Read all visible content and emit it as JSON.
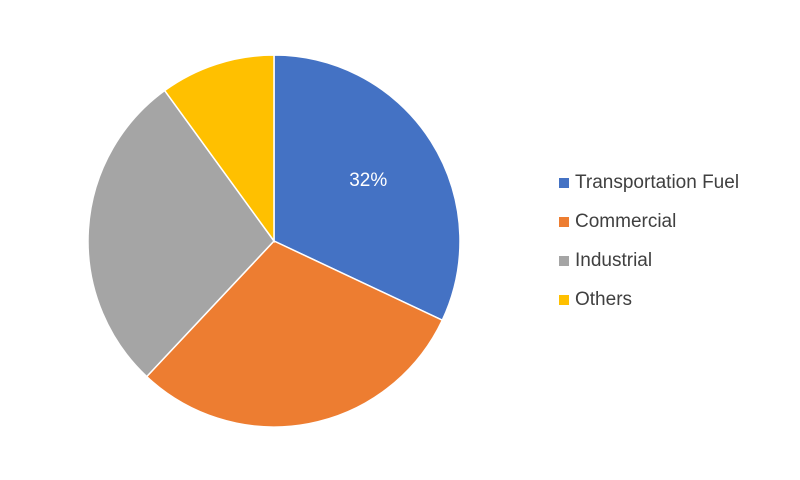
{
  "chart_data": {
    "type": "pie",
    "categories": [
      "Transportation Fuel",
      "Commercial",
      "Industrial",
      "Others"
    ],
    "values": [
      32,
      30,
      28,
      10
    ],
    "value_labels": [
      "32%",
      null,
      null,
      null
    ],
    "colors": [
      "#4472c4",
      "#ed7d31",
      "#a5a5a5",
      "#ffc000"
    ],
    "legend": "right"
  }
}
